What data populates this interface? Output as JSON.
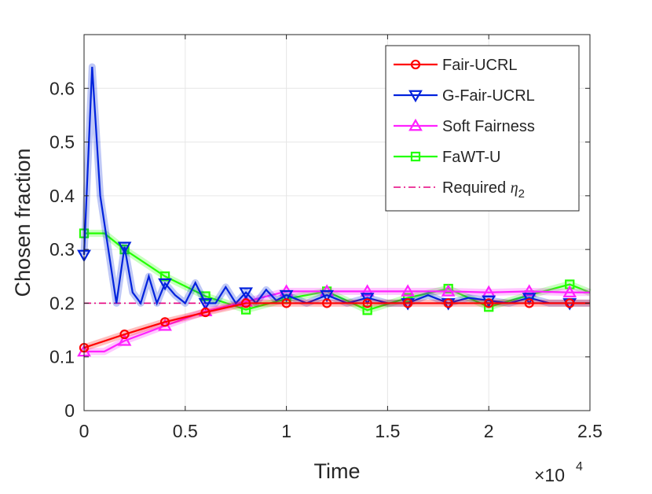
{
  "chart_data": {
    "type": "line",
    "xlabel": "Time",
    "ylabel": "Chosen fraction",
    "x_multiplier_label": "×10",
    "x_multiplier_exp": "4",
    "xlim": [
      0,
      2.5
    ],
    "ylim": [
      0,
      0.7
    ],
    "x_ticks": [
      0,
      0.5,
      1,
      1.5,
      2,
      2.5
    ],
    "x_tick_labels": [
      "0",
      "0.5",
      "1",
      "1.5",
      "2",
      "2.5"
    ],
    "y_ticks": [
      0,
      0.1,
      0.2,
      0.3,
      0.4,
      0.5,
      0.6
    ],
    "y_tick_labels": [
      "0",
      "0.1",
      "0.2",
      "0.3",
      "0.4",
      "0.5",
      "0.6"
    ],
    "grid": true,
    "legend_position": "top-right",
    "series": [
      {
        "name": "Fair-UCRL",
        "color": "#ff0000",
        "marker": "circle",
        "line_style": "solid",
        "x": [
          0,
          0.2,
          0.4,
          0.6,
          0.8,
          1.0,
          1.2,
          1.4,
          1.6,
          1.8,
          2.0,
          2.2,
          2.4,
          2.5
        ],
        "y": [
          0.117,
          0.142,
          0.165,
          0.183,
          0.2,
          0.2,
          0.2,
          0.2,
          0.2,
          0.2,
          0.2,
          0.2,
          0.2,
          0.2
        ],
        "marker_x": [
          0,
          0.2,
          0.4,
          0.6,
          0.8,
          1.0,
          1.2,
          1.4,
          1.6,
          1.8,
          2.0,
          2.2,
          2.4
        ]
      },
      {
        "name": "G-Fair-UCRL",
        "color": "#0022dd",
        "marker": "triangle-down",
        "line_style": "solid",
        "x": [
          0,
          0.04,
          0.08,
          0.12,
          0.16,
          0.2,
          0.24,
          0.28,
          0.32,
          0.36,
          0.4,
          0.45,
          0.5,
          0.55,
          0.6,
          0.65,
          0.7,
          0.75,
          0.8,
          0.85,
          0.9,
          0.95,
          1.0,
          1.1,
          1.2,
          1.3,
          1.4,
          1.5,
          1.6,
          1.7,
          1.8,
          1.9,
          2.0,
          2.1,
          2.2,
          2.3,
          2.4,
          2.5
        ],
        "y": [
          0.29,
          0.64,
          0.4,
          0.3,
          0.2,
          0.305,
          0.22,
          0.2,
          0.25,
          0.2,
          0.237,
          0.215,
          0.2,
          0.238,
          0.2,
          0.2,
          0.23,
          0.2,
          0.22,
          0.2,
          0.225,
          0.205,
          0.215,
          0.2,
          0.215,
          0.2,
          0.21,
          0.2,
          0.2,
          0.215,
          0.2,
          0.21,
          0.205,
          0.2,
          0.21,
          0.2,
          0.2,
          0.2
        ],
        "marker_x": [
          0,
          0.2,
          0.4,
          0.6,
          0.8,
          1.0,
          1.2,
          1.4,
          1.6,
          1.8,
          2.0,
          2.2,
          2.4
        ]
      },
      {
        "name": "Soft Fairness",
        "color": "#ff22ff",
        "marker": "triangle-up",
        "line_style": "solid",
        "x": [
          0,
          0.1,
          0.2,
          0.4,
          0.6,
          0.8,
          1.0,
          1.2,
          1.4,
          1.6,
          1.8,
          2.0,
          2.2,
          2.4,
          2.5
        ],
        "y": [
          0.11,
          0.11,
          0.13,
          0.158,
          0.185,
          0.203,
          0.222,
          0.222,
          0.222,
          0.222,
          0.222,
          0.22,
          0.222,
          0.22,
          0.22
        ],
        "marker_x": [
          0,
          0.2,
          0.4,
          0.6,
          0.8,
          1.0,
          1.2,
          1.4,
          1.6,
          1.8,
          2.0,
          2.2,
          2.4
        ]
      },
      {
        "name": "FaWT-U",
        "color": "#22ff00",
        "marker": "square",
        "line_style": "solid",
        "x": [
          0,
          0.1,
          0.2,
          0.4,
          0.6,
          0.8,
          1.0,
          1.2,
          1.4,
          1.6,
          1.8,
          2.0,
          2.2,
          2.4,
          2.5
        ],
        "y": [
          0.33,
          0.33,
          0.3,
          0.25,
          0.213,
          0.188,
          0.208,
          0.222,
          0.187,
          0.21,
          0.227,
          0.193,
          0.215,
          0.235,
          0.22
        ],
        "marker_x": [
          0,
          0.2,
          0.4,
          0.6,
          0.8,
          1.0,
          1.2,
          1.4,
          1.6,
          1.8,
          2.0,
          2.2,
          2.4
        ]
      }
    ],
    "reference_line": {
      "name": "Required η2",
      "label_text": "Required ",
      "label_symbol": "η",
      "label_sub": "2",
      "color": "#e6007e",
      "line_style": "dash-dot",
      "y": 0.2,
      "x_range": [
        0,
        0.65
      ]
    }
  }
}
